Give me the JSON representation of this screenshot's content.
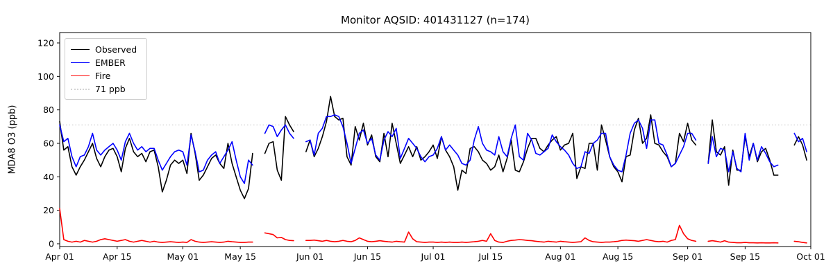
{
  "figure": {
    "title": "Monitor AQSID: 401431127 (n=174)"
  },
  "axes": {
    "ylabel": "MDA8 O3 (ppb)",
    "y_ticks": [
      0,
      20,
      40,
      60,
      80,
      100,
      120
    ],
    "x_ticks": [
      "Apr 01",
      "Apr 15",
      "May 01",
      "May 15",
      "Jun 01",
      "Jun 15",
      "Jul 01",
      "Jul 15",
      "Aug 01",
      "Aug 15",
      "Sep 01",
      "Sep 15",
      "Oct 01"
    ]
  },
  "legend": {
    "items": [
      {
        "label": "Observed",
        "color": "#000000",
        "style": "solid"
      },
      {
        "label": "EMBER",
        "color": "#0000ff",
        "style": "solid"
      },
      {
        "label": "Fire",
        "color": "#ff0000",
        "style": "solid"
      },
      {
        "label": "71 ppb",
        "color": "#d3d3d3",
        "style": "dotted"
      }
    ]
  },
  "chart_data": {
    "type": "line",
    "title": "Monitor AQSID: 401431127 (n=174)",
    "xlabel": "",
    "ylabel": "MDA8 O3 (ppb)",
    "x_start_date": "Apr 01",
    "x_end_date": "Oct 01",
    "n_days": 183,
    "n_observed": 174,
    "ylim": [
      -2,
      126
    ],
    "grid": false,
    "legend_position": "upper left",
    "threshold": {
      "value": 71,
      "label": "71 ppb",
      "color": "#d3d3d3",
      "linestyle": "dotted"
    },
    "x_tick_days": [
      0,
      14,
      30,
      44,
      61,
      75,
      91,
      105,
      122,
      136,
      153,
      167,
      183
    ],
    "x_tick_labels": [
      "Apr 01",
      "Apr 15",
      "May 01",
      "May 15",
      "Jun 01",
      "Jun 15",
      "Jul 01",
      "Jul 15",
      "Aug 01",
      "Aug 15",
      "Sep 01",
      "Sep 15",
      "Oct 01"
    ],
    "y_ticks": [
      0,
      20,
      40,
      60,
      80,
      100,
      120
    ],
    "series": [
      {
        "name": "Observed",
        "color": "#000000",
        "linewidth": 1.6,
        "values": [
          73,
          56,
          58,
          46,
          41,
          46,
          50,
          55,
          60,
          51,
          46,
          52,
          56,
          57,
          52,
          43,
          57,
          63,
          55,
          52,
          54,
          49,
          55,
          56,
          46,
          31,
          38,
          47,
          50,
          48,
          50,
          42,
          66,
          54,
          38,
          41,
          46,
          51,
          53,
          48,
          45,
          60,
          48,
          40,
          32,
          27,
          33,
          54,
          null,
          null,
          54,
          60,
          61,
          44,
          38,
          76,
          71,
          67,
          null,
          null,
          55,
          62,
          52,
          57,
          64,
          73,
          88,
          76,
          74,
          75,
          52,
          47,
          70,
          62,
          72,
          59,
          65,
          52,
          49,
          66,
          52,
          72,
          60,
          48,
          53,
          58,
          52,
          58,
          50,
          52,
          55,
          59,
          51,
          64,
          56,
          52,
          46,
          32,
          44,
          42,
          57,
          58,
          55,
          50,
          48,
          44,
          46,
          53,
          43,
          51,
          62,
          44,
          43,
          49,
          57,
          63,
          63,
          57,
          55,
          59,
          62,
          64,
          56,
          59,
          60,
          66,
          39,
          46,
          45,
          60,
          60,
          44,
          71,
          62,
          52,
          46,
          43,
          37,
          52,
          53,
          68,
          75,
          60,
          63,
          77,
          60,
          59,
          55,
          52,
          46,
          48,
          66,
          61,
          72,
          62,
          59,
          null,
          null,
          48,
          74,
          55,
          53,
          58,
          35,
          56,
          44,
          44,
          64,
          52,
          60,
          49,
          55,
          57,
          50,
          41,
          41,
          null,
          null,
          null,
          59,
          64,
          59,
          50
        ]
      },
      {
        "name": "EMBER",
        "color": "#0000ff",
        "linewidth": 1.6,
        "values": [
          71,
          61,
          63,
          52,
          46,
          52,
          53,
          58,
          66,
          56,
          53,
          56,
          58,
          60,
          56,
          50,
          61,
          66,
          60,
          56,
          58,
          55,
          57,
          57,
          50,
          44,
          48,
          52,
          55,
          56,
          55,
          47,
          65,
          55,
          43,
          44,
          50,
          53,
          55,
          48,
          52,
          56,
          61,
          50,
          40,
          36,
          50,
          47,
          null,
          null,
          66,
          71,
          70,
          64,
          68,
          71,
          66,
          63,
          null,
          null,
          61,
          62,
          53,
          66,
          69,
          76,
          76,
          77,
          76,
          70,
          60,
          48,
          57,
          66,
          68,
          60,
          63,
          53,
          50,
          62,
          67,
          64,
          69,
          51,
          57,
          63,
          60,
          57,
          52,
          49,
          52,
          53,
          57,
          64,
          56,
          59,
          56,
          53,
          48,
          47,
          50,
          62,
          70,
          60,
          56,
          55,
          53,
          64,
          55,
          52,
          63,
          71,
          52,
          50,
          66,
          62,
          54,
          53,
          55,
          57,
          65,
          61,
          58,
          56,
          53,
          48,
          45,
          46,
          55,
          54,
          60,
          62,
          66,
          66,
          52,
          47,
          44,
          43,
          53,
          66,
          72,
          74,
          69,
          57,
          74,
          74,
          60,
          59,
          53,
          46,
          48,
          53,
          58,
          66,
          66,
          62,
          null,
          null,
          48,
          64,
          52,
          57,
          56,
          43,
          55,
          45,
          43,
          66,
          50,
          60,
          50,
          58,
          54,
          49,
          46,
          47,
          null,
          null,
          null,
          66,
          61,
          63,
          55
        ]
      },
      {
        "name": "Fire",
        "color": "#ff0000",
        "linewidth": 1.6,
        "values": [
          21,
          2.5,
          1.5,
          1,
          1.5,
          1,
          2,
          1.5,
          1,
          1.5,
          2.5,
          3,
          2.5,
          2,
          1.5,
          2,
          2.5,
          1.5,
          1,
          1.5,
          2,
          1.5,
          1,
          1.5,
          1,
          0.8,
          1,
          1.2,
          1,
          0.8,
          1,
          0.8,
          2.5,
          1.5,
          1,
          0.8,
          1,
          1.2,
          1,
          0.8,
          1,
          1.5,
          1.2,
          1,
          0.8,
          0.8,
          1,
          1,
          null,
          null,
          6.5,
          6,
          5.5,
          3.5,
          3.8,
          2.5,
          2,
          1.8,
          null,
          null,
          2,
          2,
          2.2,
          1.8,
          1.5,
          2,
          1.5,
          1.2,
          1.5,
          2,
          1.5,
          1.2,
          2,
          3.5,
          2.5,
          1.5,
          1.2,
          1.5,
          1.8,
          1.5,
          1.2,
          1,
          1.5,
          1.2,
          1,
          7,
          3,
          1.2,
          1,
          0.8,
          1,
          1,
          0.8,
          1,
          0.8,
          1,
          0.8,
          0.8,
          1,
          0.8,
          1,
          1.2,
          1.5,
          2,
          1.5,
          6,
          2,
          1,
          0.8,
          1.5,
          2,
          2.2,
          2.5,
          2.3,
          2,
          1.8,
          1.5,
          1.2,
          1,
          1.5,
          1.2,
          1,
          1.5,
          1.2,
          1,
          0.8,
          1,
          1.2,
          3.5,
          2,
          1.2,
          1,
          0.8,
          1,
          1,
          1.2,
          1.5,
          2,
          2.2,
          2,
          1.8,
          1.5,
          2,
          2.5,
          2,
          1.5,
          1.2,
          1.5,
          1,
          2,
          2.5,
          11,
          6,
          3,
          2,
          1.5,
          null,
          null,
          1.5,
          1.8,
          1.5,
          1,
          1.8,
          1,
          0.8,
          0.6,
          0.6,
          0.8,
          0.6,
          0.6,
          0.5,
          0.6,
          0.5,
          0.5,
          0.6,
          0.5,
          null,
          null,
          null,
          1.5,
          1.2,
          0.8,
          0.5
        ]
      }
    ]
  }
}
